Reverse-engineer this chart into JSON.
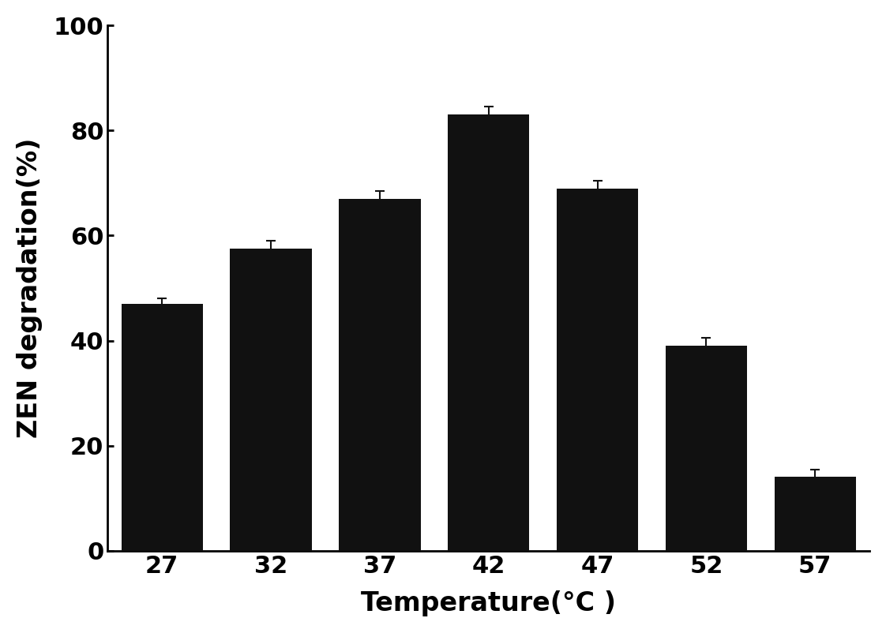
{
  "categories": [
    "27",
    "32",
    "37",
    "42",
    "47",
    "52",
    "57"
  ],
  "values": [
    47.0,
    57.5,
    67.0,
    83.0,
    69.0,
    39.0,
    14.0
  ],
  "errors": [
    1.0,
    1.5,
    1.5,
    1.5,
    1.5,
    1.5,
    1.5
  ],
  "bar_color": "#111111",
  "xlabel": "Temperature(°C )",
  "ylabel": "ZEN degradation(%)",
  "ylim": [
    0,
    100
  ],
  "yticks": [
    0,
    20,
    40,
    60,
    80,
    100
  ],
  "background_color": "#ffffff",
  "label_fontsize": 24,
  "tick_fontsize": 22,
  "bar_width": 0.75,
  "capsize": 4,
  "xlim_left": -0.5,
  "xlim_right": 6.5
}
